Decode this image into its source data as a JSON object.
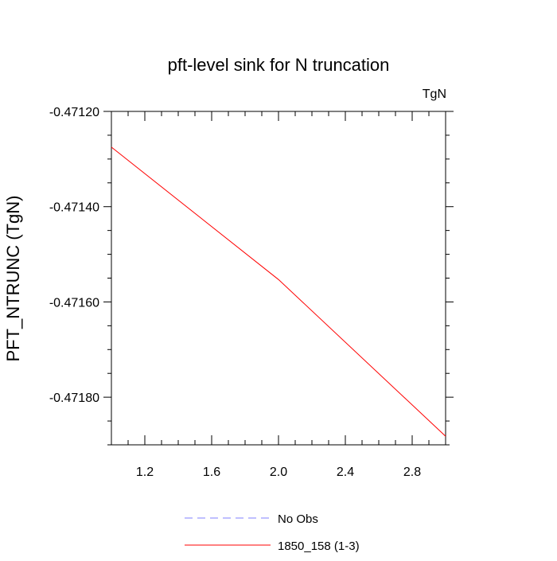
{
  "chart_data": {
    "type": "line",
    "title": "pft-level sink for N truncation",
    "units_label": "TgN",
    "xlabel": "",
    "ylabel": "PFT_NTRUNC  (TgN)",
    "xlim": [
      1.0,
      3.0
    ],
    "ylim": [
      -0.4719,
      -0.4712
    ],
    "xticks": [
      1.2,
      1.6,
      2.0,
      2.4,
      2.8
    ],
    "xtick_labels": [
      "1.2",
      "1.6",
      "2.0",
      "2.4",
      "2.8"
    ],
    "yticks": [
      -0.4712,
      -0.4714,
      -0.4716,
      -0.4718
    ],
    "ytick_labels": [
      "-0.47120",
      "-0.47140",
      "-0.47160",
      "-0.47180"
    ],
    "grid": false,
    "legend_position": "bottom",
    "series": [
      {
        "name": "No Obs",
        "color": "#8080ff",
        "dash": "dashed",
        "x": [],
        "y": []
      },
      {
        "name": "1850_158 (1-3)",
        "color": "#ff0000",
        "dash": "solid",
        "x": [
          1.0,
          2.0,
          3.0
        ],
        "y": [
          -0.471275,
          -0.471553,
          -0.471882
        ]
      }
    ]
  }
}
